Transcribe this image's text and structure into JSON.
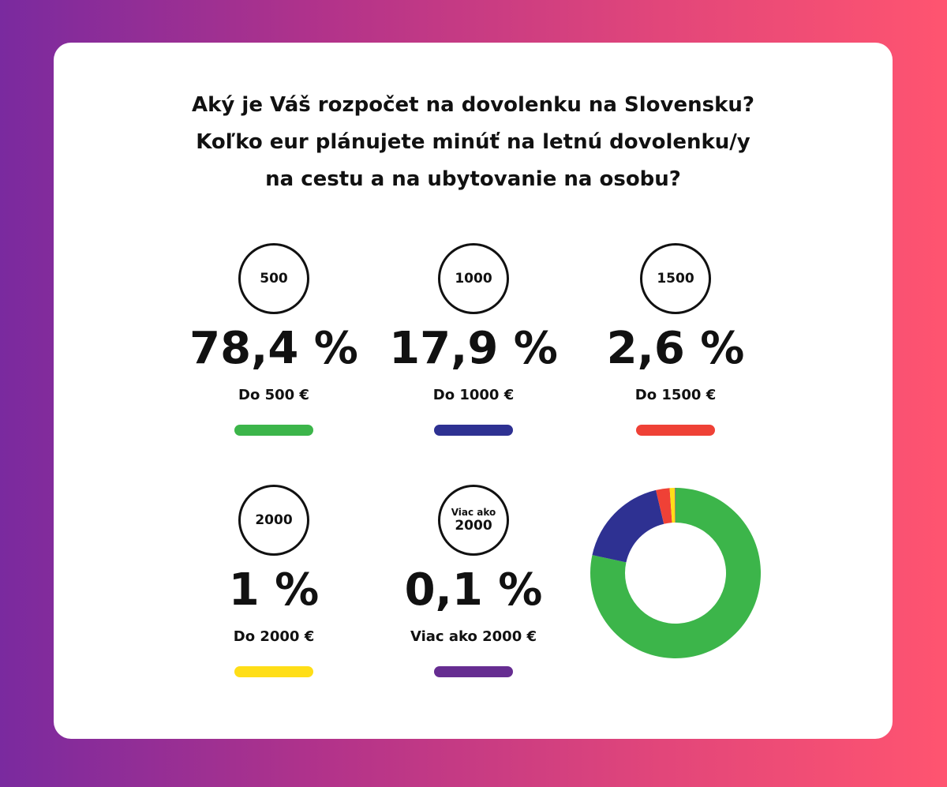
{
  "title_lines": [
    "Aký je Váš rozpočet na dovolenku na Slovensku?",
    "Koľko eur plánujete minúť na letnú dovolenku/y",
    "na cestu a na ubytovanie na osobu?"
  ],
  "stats": [
    {
      "circle_label": "500",
      "circle_sub": "",
      "percent_text": "78,4 %",
      "description": "Do 500 €",
      "color": "#3cb54a"
    },
    {
      "circle_label": "1000",
      "circle_sub": "",
      "percent_text": "17,9 %",
      "description": "Do 1000 €",
      "color": "#2e3192"
    },
    {
      "circle_label": "1500",
      "circle_sub": "",
      "percent_text": "2,6 %",
      "description": "Do 1500 €",
      "color": "#ef4136"
    },
    {
      "circle_label": "2000",
      "circle_sub": "",
      "percent_text": "1 %",
      "description": "Do 2000 €",
      "color": "#ffde17"
    },
    {
      "circle_label": "2000",
      "circle_sub": "Viac ako",
      "percent_text": "0,1 %",
      "description": "Viac ako 2000 €",
      "color": "#662d91"
    }
  ],
  "chart_data": {
    "type": "pie",
    "title": "Aký je Váš rozpočet na dovolenku na Slovensku? Koľko eur plánujete minúť na letnú dovolenku/y na cestu a na ubytovanie na osobu?",
    "categories": [
      "Do 500 €",
      "Do 1000 €",
      "Do 1500 €",
      "Do 2000 €",
      "Viac ako 2000 €"
    ],
    "values": [
      78.4,
      17.9,
      2.6,
      1.0,
      0.1
    ],
    "colors": [
      "#3cb54a",
      "#2e3192",
      "#ef4136",
      "#ffde17",
      "#662d91"
    ],
    "unit": "%",
    "style": "donut"
  }
}
